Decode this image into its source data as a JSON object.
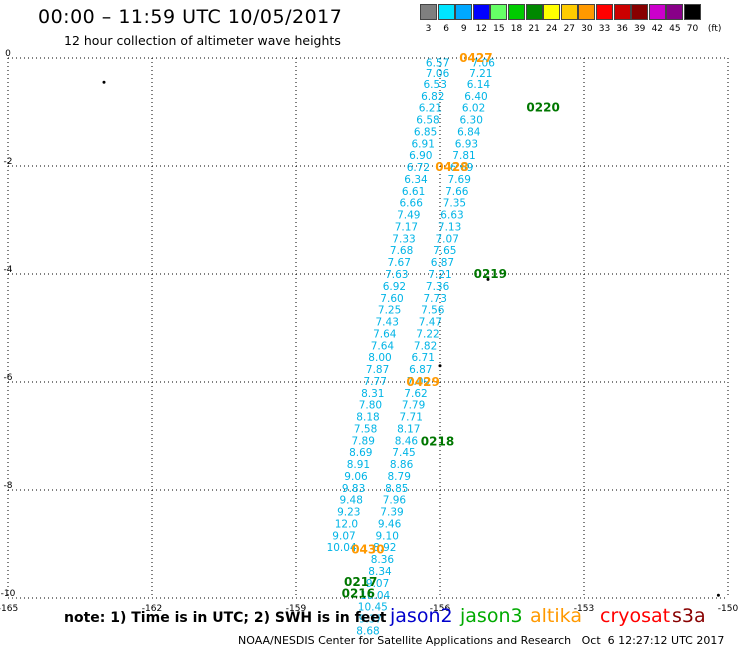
{
  "header": {
    "title": "00:00 – 11:59 UTC 10/05/2017",
    "subtitle": "12 hour collection of altimeter wave heights"
  },
  "color_scale": {
    "unit": "(ft)",
    "bins": [
      {
        "label": "3",
        "color": "#7f7f7f"
      },
      {
        "label": "6",
        "color": "#00e5ff"
      },
      {
        "label": "9",
        "color": "#00a8ff"
      },
      {
        "label": "12",
        "color": "#0000ff"
      },
      {
        "label": "15",
        "color": "#66ff66"
      },
      {
        "label": "18",
        "color": "#00cc00"
      },
      {
        "label": "21",
        "color": "#008800"
      },
      {
        "label": "24",
        "color": "#ffff00"
      },
      {
        "label": "27",
        "color": "#ffcc00"
      },
      {
        "label": "30",
        "color": "#ff9900"
      },
      {
        "label": "33",
        "color": "#ff0000"
      },
      {
        "label": "36",
        "color": "#cc0000"
      },
      {
        "label": "39",
        "color": "#880000"
      },
      {
        "label": "42",
        "color": "#cc00cc"
      },
      {
        "label": "45",
        "color": "#880088"
      },
      {
        "label": "70",
        "color": "#000000"
      }
    ]
  },
  "chart_data": {
    "type": "scatter",
    "xlim": [
      -165,
      -150
    ],
    "ylim": [
      -10,
      0
    ],
    "xticks": [
      -165,
      -162,
      -159,
      -156,
      -153,
      -150
    ],
    "xtick_labels": [
      "-165",
      "-162",
      "-159",
      "-156",
      "-153",
      "-150"
    ],
    "yticks": [
      0,
      -2,
      -4,
      -6,
      -8,
      -10
    ],
    "ytick_labels": [
      "0",
      "-2",
      "-4",
      "-6",
      "-8",
      "-10"
    ],
    "grid": true,
    "colors": {
      "cyan": "#00b4e6",
      "blue": "#0000cc",
      "green": "#00aa00",
      "orange": "#ff9900",
      "dark_green": "#007700"
    },
    "tracks": [
      {
        "satellite": "altika",
        "color": "orange",
        "points": [
          {
            "x": -156.05,
            "y": -0.08,
            "label": "6.57"
          },
          {
            "x": -156.05,
            "y": -0.28,
            "label": "7.06"
          },
          {
            "x": -156.1,
            "y": -0.48,
            "label": "6.53"
          },
          {
            "x": -156.15,
            "y": -0.7,
            "label": "6.82"
          },
          {
            "x": -156.2,
            "y": -0.92,
            "label": "6.21"
          },
          {
            "x": -156.25,
            "y": -1.14,
            "label": "6.58"
          },
          {
            "x": -156.3,
            "y": -1.36,
            "label": "6.85"
          },
          {
            "x": -156.35,
            "y": -1.58,
            "label": "6.91"
          },
          {
            "x": -156.4,
            "y": -1.8,
            "label": "6.90"
          },
          {
            "x": -156.45,
            "y": -2.02,
            "label": "6.72"
          },
          {
            "x": -156.5,
            "y": -2.24,
            "label": "6.34"
          },
          {
            "x": -156.55,
            "y": -2.46,
            "label": "6.61"
          },
          {
            "x": -156.6,
            "y": -2.68,
            "label": "6.66"
          },
          {
            "x": -156.65,
            "y": -2.9,
            "label": "7.49"
          },
          {
            "x": -156.7,
            "y": -3.12,
            "label": "7.17"
          },
          {
            "x": -156.75,
            "y": -3.34,
            "label": "7.33"
          },
          {
            "x": -156.8,
            "y": -3.56,
            "label": "7.68"
          },
          {
            "x": -156.85,
            "y": -3.78,
            "label": "7.67"
          },
          {
            "x": -156.9,
            "y": -4.0,
            "label": "7.63"
          },
          {
            "x": -156.95,
            "y": -4.22,
            "label": "6.92"
          },
          {
            "x": -157.0,
            "y": -4.44,
            "label": "7.60"
          },
          {
            "x": -157.05,
            "y": -4.66,
            "label": "7.25"
          },
          {
            "x": -157.1,
            "y": -4.88,
            "label": "7.43"
          },
          {
            "x": -157.15,
            "y": -5.1,
            "label": "7.64"
          },
          {
            "x": -157.2,
            "y": -5.32,
            "label": "7.64"
          },
          {
            "x": -157.25,
            "y": -5.54,
            "label": "8.00"
          },
          {
            "x": -157.3,
            "y": -5.76,
            "label": "7.87"
          },
          {
            "x": -157.35,
            "y": -5.98,
            "label": "7.77"
          },
          {
            "x": -157.4,
            "y": -6.2,
            "label": "8.31"
          },
          {
            "x": -157.45,
            "y": -6.42,
            "label": "7.80"
          },
          {
            "x": -157.5,
            "y": -6.64,
            "label": "8.18"
          },
          {
            "x": -157.55,
            "y": -6.86,
            "label": "7.58"
          },
          {
            "x": -157.6,
            "y": -7.08,
            "label": "7.89"
          },
          {
            "x": -157.65,
            "y": -7.3,
            "label": "8.69"
          },
          {
            "x": -157.7,
            "y": -7.52,
            "label": "8.91"
          },
          {
            "x": -157.75,
            "y": -7.74,
            "label": "9.06"
          },
          {
            "x": -157.8,
            "y": -7.96,
            "label": "9.83"
          },
          {
            "x": -157.85,
            "y": -8.18,
            "label": "9.48"
          },
          {
            "x": -157.9,
            "y": -8.4,
            "label": "9.23"
          },
          {
            "x": -157.95,
            "y": -8.62,
            "label": "12.0"
          },
          {
            "x": -158.0,
            "y": -8.84,
            "label": "9.07"
          },
          {
            "x": -158.05,
            "y": -9.06,
            "label": "10.04"
          }
        ]
      },
      {
        "satellite": "jason3",
        "color": "green",
        "points": [
          {
            "x": -155.1,
            "y": -0.08,
            "label": "7.06"
          },
          {
            "x": -155.15,
            "y": -0.28,
            "label": "7.21"
          },
          {
            "x": -155.2,
            "y": -0.48,
            "label": "6.14"
          },
          {
            "x": -155.25,
            "y": -0.7,
            "label": "6.40"
          },
          {
            "x": -155.3,
            "y": -0.92,
            "label": "6.02"
          },
          {
            "x": -155.35,
            "y": -1.14,
            "label": "6.30"
          },
          {
            "x": -155.4,
            "y": -1.36,
            "label": "6.84"
          },
          {
            "x": -155.45,
            "y": -1.58,
            "label": "6.93"
          },
          {
            "x": -155.5,
            "y": -1.8,
            "label": "7.81"
          },
          {
            "x": -155.55,
            "y": -2.02,
            "label": "6.69"
          },
          {
            "x": -155.6,
            "y": -2.24,
            "label": "7.69"
          },
          {
            "x": -155.65,
            "y": -2.46,
            "label": "7.66"
          },
          {
            "x": -155.7,
            "y": -2.68,
            "label": "7.35"
          },
          {
            "x": -155.75,
            "y": -2.9,
            "label": "6.63"
          },
          {
            "x": -155.8,
            "y": -3.12,
            "label": "7.13"
          },
          {
            "x": -155.85,
            "y": -3.34,
            "label": "7.07"
          },
          {
            "x": -155.9,
            "y": -3.56,
            "label": "7.65"
          },
          {
            "x": -155.95,
            "y": -3.78,
            "label": "6.87"
          },
          {
            "x": -156.0,
            "y": -4.0,
            "label": "7.21"
          },
          {
            "x": -156.05,
            "y": -4.22,
            "label": "7.36"
          },
          {
            "x": -156.1,
            "y": -4.44,
            "label": "7.73"
          },
          {
            "x": -156.15,
            "y": -4.66,
            "label": "7.56"
          },
          {
            "x": -156.2,
            "y": -4.88,
            "label": "7.47"
          },
          {
            "x": -156.25,
            "y": -5.1,
            "label": "7.22"
          },
          {
            "x": -156.3,
            "y": -5.32,
            "label": "7.82"
          },
          {
            "x": -156.35,
            "y": -5.54,
            "label": "6.71"
          },
          {
            "x": -156.4,
            "y": -5.76,
            "label": "6.87"
          },
          {
            "x": -156.45,
            "y": -5.98,
            "label": "7.09"
          },
          {
            "x": -156.5,
            "y": -6.2,
            "label": "7.62"
          },
          {
            "x": -156.55,
            "y": -6.42,
            "label": "7.79"
          },
          {
            "x": -156.6,
            "y": -6.64,
            "label": "7.71"
          },
          {
            "x": -156.65,
            "y": -6.86,
            "label": "8.17"
          },
          {
            "x": -156.7,
            "y": -7.08,
            "label": "8.46"
          },
          {
            "x": -156.75,
            "y": -7.3,
            "label": "7.45"
          },
          {
            "x": -156.8,
            "y": -7.52,
            "label": "8.86"
          },
          {
            "x": -156.85,
            "y": -7.74,
            "label": "8.79"
          },
          {
            "x": -156.9,
            "y": -7.96,
            "label": "8.85"
          },
          {
            "x": -156.95,
            "y": -8.18,
            "label": "7.96"
          },
          {
            "x": -157.0,
            "y": -8.4,
            "label": "7.39"
          },
          {
            "x": -157.05,
            "y": -8.62,
            "label": "9.46"
          },
          {
            "x": -157.1,
            "y": -8.84,
            "label": "9.10"
          },
          {
            "x": -157.15,
            "y": -9.06,
            "label": "8.92"
          },
          {
            "x": -157.2,
            "y": -9.28,
            "label": "8.36"
          },
          {
            "x": -157.25,
            "y": -9.5,
            "label": "8.34"
          },
          {
            "x": -157.3,
            "y": -9.72,
            "label": "9.07"
          },
          {
            "x": -157.35,
            "y": -9.94,
            "label": "10.04"
          },
          {
            "x": -157.4,
            "y": -10.16,
            "label": "10.45"
          },
          {
            "x": -157.45,
            "y": -10.38,
            "label": "9.37"
          },
          {
            "x": -157.5,
            "y": -10.6,
            "label": "8.68"
          }
        ]
      }
    ],
    "time_labels": [
      {
        "x": -155.6,
        "y": 0.0,
        "text": "0427",
        "color": "orange"
      },
      {
        "x": -154.2,
        "y": -0.92,
        "text": "0220",
        "color": "dark_green"
      },
      {
        "x": -156.1,
        "y": -2.02,
        "text": "0428",
        "color": "orange"
      },
      {
        "x": -155.3,
        "y": -4.0,
        "text": "0219",
        "color": "dark_green"
      },
      {
        "x": -156.7,
        "y": -6.0,
        "text": "0429",
        "color": "orange"
      },
      {
        "x": -156.4,
        "y": -7.1,
        "text": "0218",
        "color": "dark_green"
      },
      {
        "x": -157.85,
        "y": -9.1,
        "text": "0430",
        "color": "orange"
      },
      {
        "x": -158.0,
        "y": -9.7,
        "text": "0217",
        "color": "dark_green"
      },
      {
        "x": -158.05,
        "y": -9.92,
        "text": "0216",
        "color": "dark_green"
      }
    ],
    "dots": [
      {
        "x": -163.0,
        "y": -0.45
      },
      {
        "x": -155.0,
        "y": -4.1
      },
      {
        "x": -156.0,
        "y": -5.7
      },
      {
        "x": -150.2,
        "y": -9.95
      }
    ]
  },
  "legend": {
    "note": "note: 1) Time is in UTC; 2) SWH is in feet",
    "satellites": [
      {
        "name": "jason2",
        "color": "#0000cc"
      },
      {
        "name": "jason3",
        "color": "#00aa00"
      },
      {
        "name": "altika",
        "color": "#ff9900"
      },
      {
        "name": "cryosat",
        "color": "#ff0000"
      },
      {
        "name": "s3a",
        "color": "#880000"
      }
    ]
  },
  "footer": "NOAA/NESDIS Center for Satellite Applications and Research   Oct  6 12:27:12 UTC 2017"
}
